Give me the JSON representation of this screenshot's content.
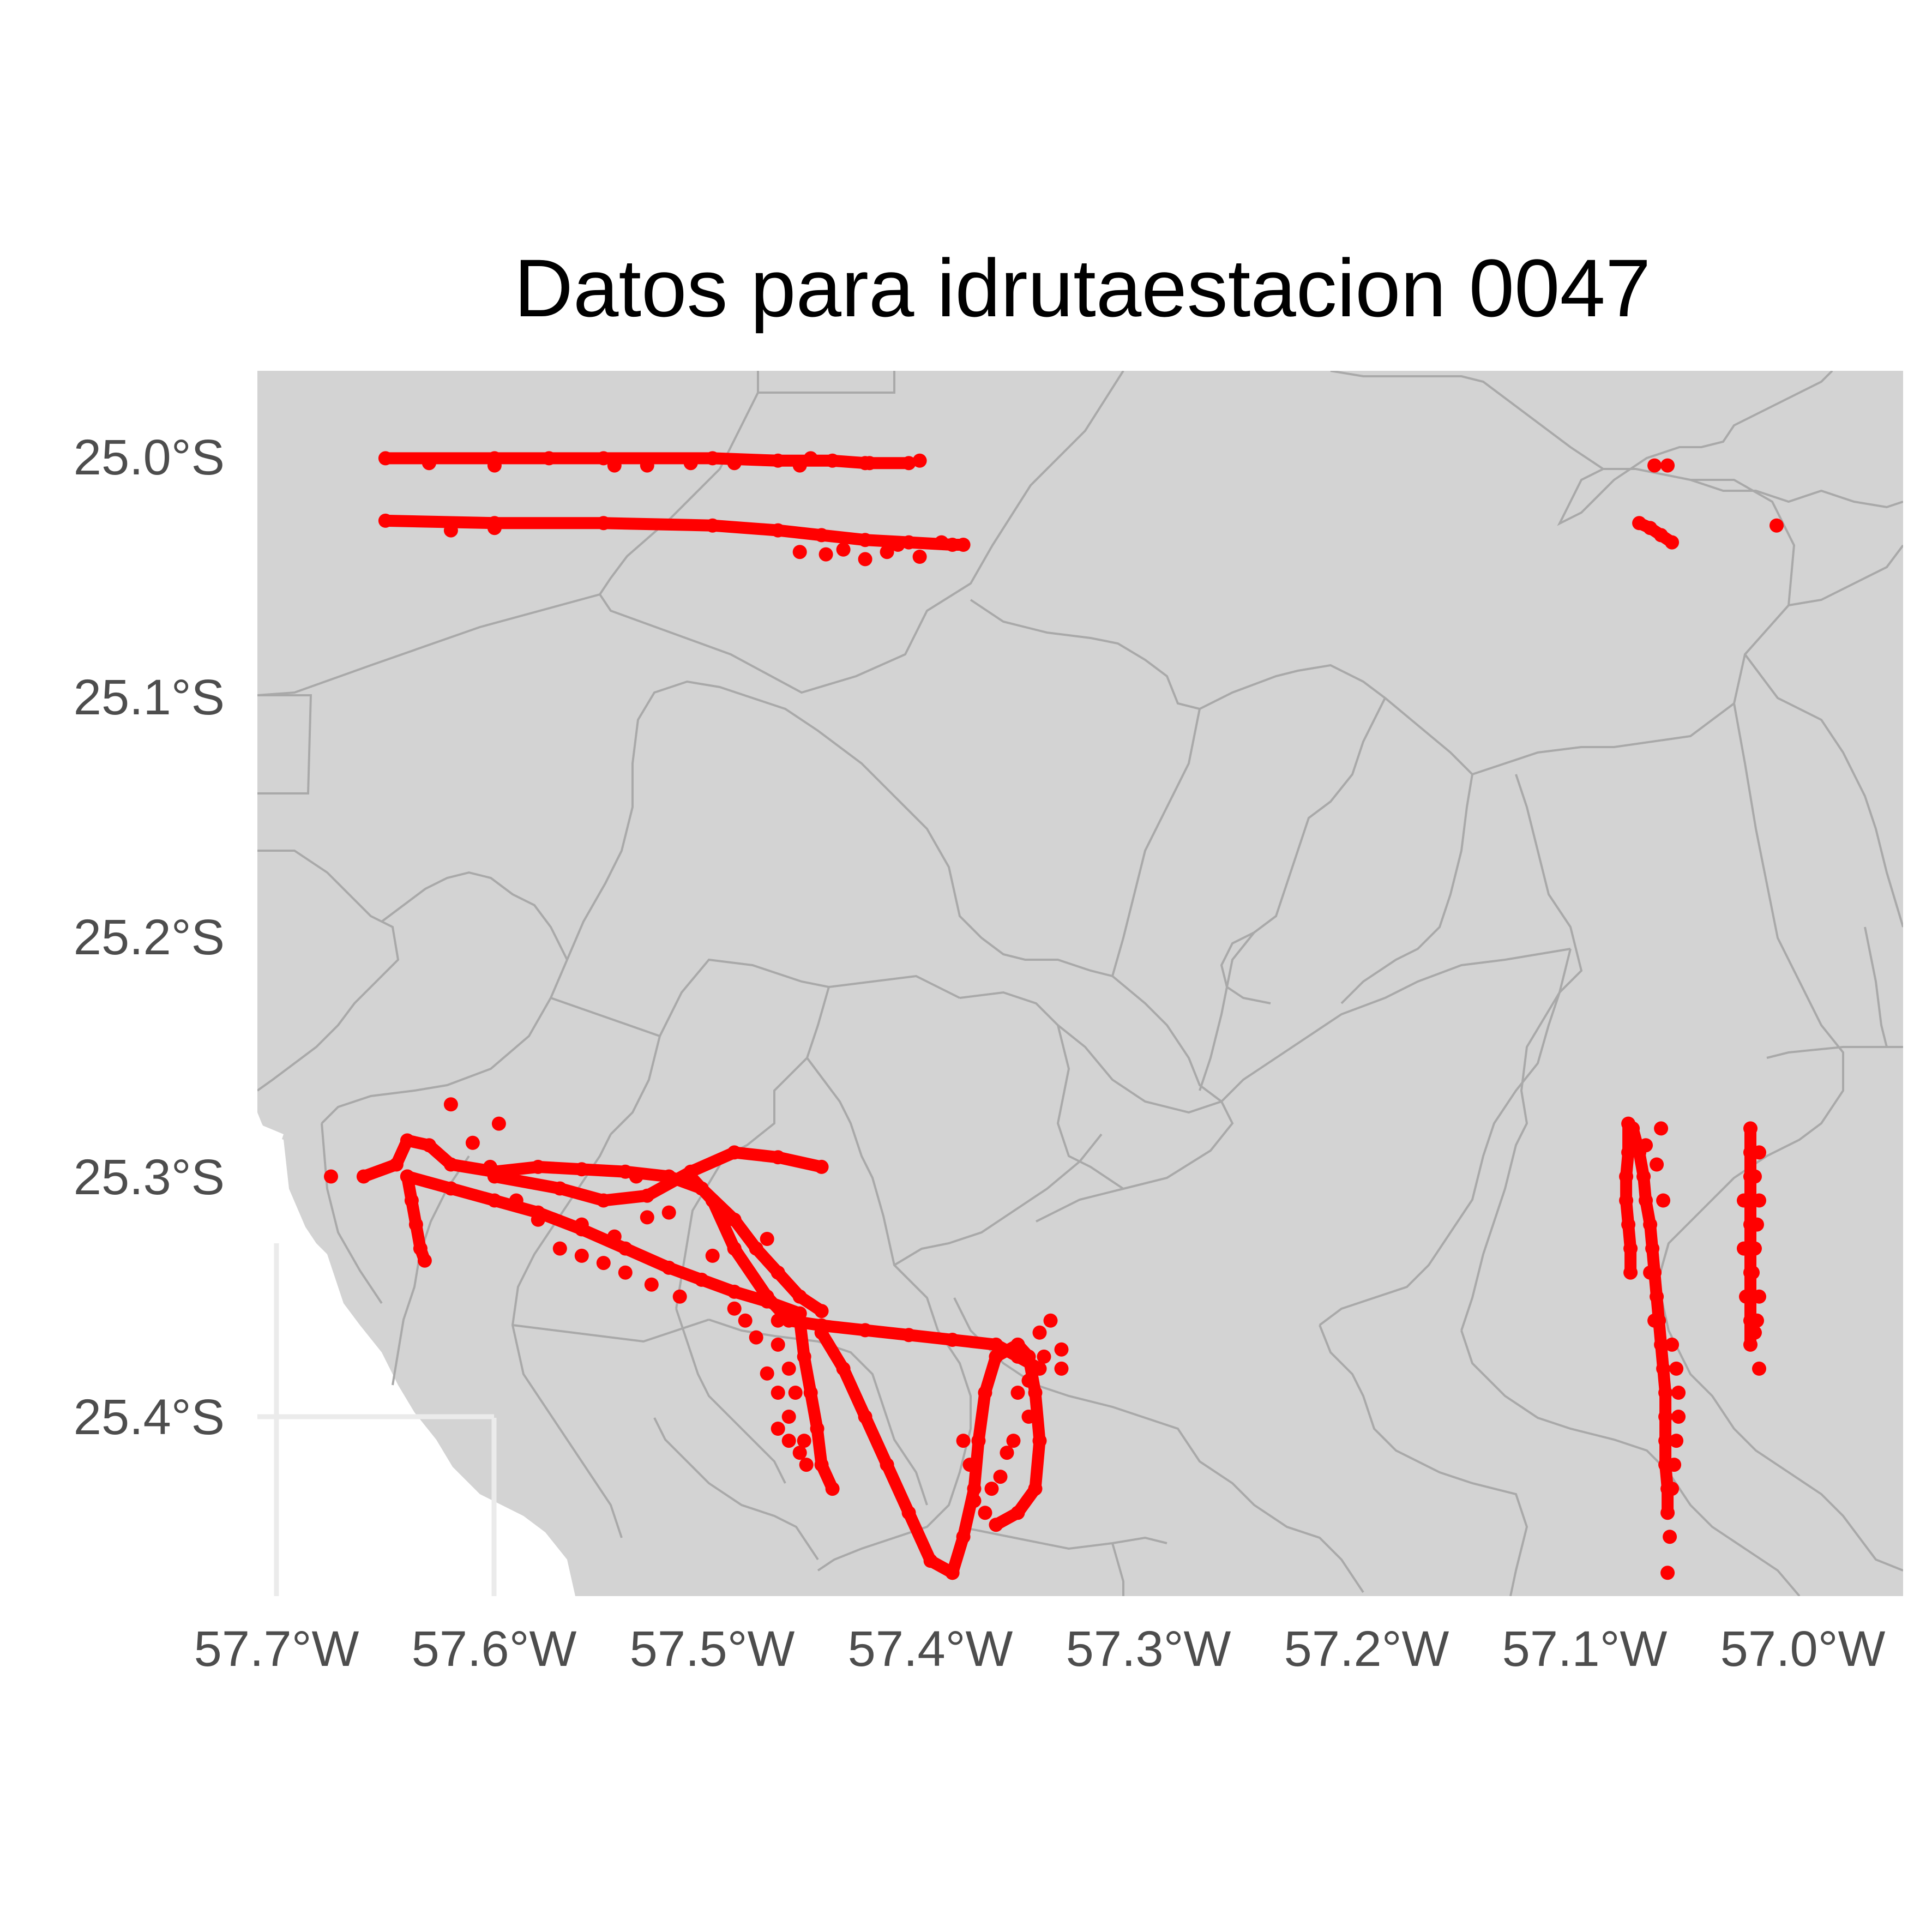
{
  "title": "Datos para idrutaestacion 0047",
  "colors": {
    "background": "#ffffff",
    "land": "#d3d3d3",
    "border": "#a9a9a9",
    "water": "#ffffff",
    "grid": "#ebebeb",
    "points": "#ff0000",
    "tick_text": "#4d4d4d"
  },
  "chart_data": {
    "type": "scatter",
    "title": "Datos para idrutaestacion 0047",
    "xlabel": "",
    "ylabel": "",
    "x_unit": "degrees longitude (negative = W)",
    "y_unit": "degrees latitude (negative = S)",
    "xlim": [
      -57.708,
      -56.955
    ],
    "ylim": [
      -25.482,
      -24.965
    ],
    "x_ticks": [
      -57.7,
      -57.6,
      -57.5,
      -57.4,
      -57.3,
      -57.2,
      -57.1,
      -57.0
    ],
    "x_tick_labels": [
      "57.7°W",
      "57.6°W",
      "57.5°W",
      "57.4°W",
      "57.3°W",
      "57.2°W",
      "57.1°W",
      "57.0°W"
    ],
    "y_ticks": [
      -25.0,
      -25.1,
      -25.2,
      -25.3,
      -25.4
    ],
    "y_tick_labels": [
      "25.0°S",
      "25.1°S",
      "25.2°S",
      "25.3°S",
      "25.4°S"
    ],
    "grid": true,
    "legend": "none",
    "tracks": [
      {
        "points": [
          [
            -57.65,
            -25.001
          ],
          [
            -57.6,
            -25.001
          ],
          [
            -57.55,
            -25.001
          ],
          [
            -57.5,
            -25.001
          ],
          [
            -57.47,
            -25.002
          ],
          [
            -57.445,
            -25.002
          ],
          [
            -57.43,
            -25.003
          ],
          [
            -57.41,
            -25.003
          ]
        ]
      },
      {
        "points": [
          [
            -57.65,
            -25.027
          ],
          [
            -57.6,
            -25.028
          ],
          [
            -57.55,
            -25.028
          ],
          [
            -57.5,
            -25.029
          ],
          [
            -57.47,
            -25.031
          ],
          [
            -57.45,
            -25.033
          ],
          [
            -57.43,
            -25.035
          ],
          [
            -57.41,
            -25.036
          ],
          [
            -57.39,
            -25.037
          ],
          [
            -57.385,
            -25.037
          ]
        ]
      },
      {
        "points": [
          [
            -57.66,
            -25.3
          ],
          [
            -57.645,
            -25.295
          ],
          [
            -57.64,
            -25.285
          ],
          [
            -57.63,
            -25.287
          ],
          [
            -57.62,
            -25.295
          ],
          [
            -57.6,
            -25.298
          ],
          [
            -57.58,
            -25.296
          ],
          [
            -57.56,
            -25.297
          ],
          [
            -57.54,
            -25.298
          ],
          [
            -57.52,
            -25.3
          ],
          [
            -57.505,
            -25.305
          ],
          [
            -57.49,
            -25.318
          ],
          [
            -57.48,
            -25.33
          ],
          [
            -57.47,
            -25.34
          ],
          [
            -57.46,
            -25.35
          ],
          [
            -57.45,
            -25.356
          ]
        ]
      },
      {
        "points": [
          [
            -57.64,
            -25.3
          ],
          [
            -57.62,
            -25.305
          ],
          [
            -57.6,
            -25.31
          ],
          [
            -57.58,
            -25.315
          ],
          [
            -57.56,
            -25.322
          ],
          [
            -57.54,
            -25.33
          ],
          [
            -57.52,
            -25.338
          ],
          [
            -57.505,
            -25.343
          ],
          [
            -57.49,
            -25.348
          ],
          [
            -57.475,
            -25.352
          ],
          [
            -57.46,
            -25.357
          ]
        ]
      },
      {
        "points": [
          [
            -57.6,
            -25.3
          ],
          [
            -57.57,
            -25.305
          ],
          [
            -57.55,
            -25.31
          ],
          [
            -57.53,
            -25.308
          ],
          [
            -57.51,
            -25.298
          ],
          [
            -57.49,
            -25.29
          ],
          [
            -57.47,
            -25.292
          ],
          [
            -57.45,
            -25.296
          ]
        ]
      },
      {
        "points": [
          [
            -57.51,
            -25.3
          ],
          [
            -57.5,
            -25.31
          ],
          [
            -57.49,
            -25.33
          ],
          [
            -57.475,
            -25.35
          ],
          [
            -57.465,
            -25.36
          ],
          [
            -57.45,
            -25.362
          ],
          [
            -57.43,
            -25.364
          ],
          [
            -57.41,
            -25.366
          ],
          [
            -57.39,
            -25.368
          ],
          [
            -57.37,
            -25.37
          ],
          [
            -57.36,
            -25.375
          ],
          [
            -57.35,
            -25.38
          ]
        ]
      },
      {
        "points": [
          [
            -57.45,
            -25.365
          ],
          [
            -57.44,
            -25.38
          ],
          [
            -57.43,
            -25.4
          ],
          [
            -57.42,
            -25.42
          ],
          [
            -57.41,
            -25.44
          ],
          [
            -57.4,
            -25.46
          ],
          [
            -57.39,
            -25.465
          ]
        ]
      },
      {
        "points": [
          [
            -57.39,
            -25.465
          ],
          [
            -57.385,
            -25.45
          ],
          [
            -57.38,
            -25.43
          ],
          [
            -57.378,
            -25.41
          ],
          [
            -57.375,
            -25.39
          ],
          [
            -57.37,
            -25.375
          ],
          [
            -57.36,
            -25.37
          ],
          [
            -57.355,
            -25.375
          ],
          [
            -57.352,
            -25.39
          ],
          [
            -57.35,
            -25.41
          ],
          [
            -57.352,
            -25.43
          ],
          [
            -57.36,
            -25.44
          ],
          [
            -57.37,
            -25.445
          ]
        ]
      },
      {
        "points": [
          [
            -57.64,
            -25.3
          ],
          [
            -57.638,
            -25.31
          ],
          [
            -57.636,
            -25.32
          ],
          [
            -57.634,
            -25.33
          ],
          [
            -57.632,
            -25.335
          ]
        ]
      },
      {
        "points": [
          [
            -57.46,
            -25.36
          ],
          [
            -57.458,
            -25.375
          ],
          [
            -57.455,
            -25.39
          ],
          [
            -57.452,
            -25.405
          ],
          [
            -57.45,
            -25.42
          ],
          [
            -57.445,
            -25.43
          ]
        ]
      },
      {
        "points": [
          [
            -57.08,
            -25.278
          ],
          [
            -57.08,
            -25.29
          ],
          [
            -57.081,
            -25.3
          ],
          [
            -57.081,
            -25.31
          ],
          [
            -57.08,
            -25.32
          ],
          [
            -57.079,
            -25.33
          ],
          [
            -57.079,
            -25.34
          ]
        ]
      },
      {
        "points": [
          [
            -57.078,
            -25.28
          ],
          [
            -57.075,
            -25.29
          ],
          [
            -57.073,
            -25.3
          ],
          [
            -57.072,
            -25.31
          ],
          [
            -57.07,
            -25.32
          ],
          [
            -57.069,
            -25.33
          ],
          [
            -57.068,
            -25.34
          ],
          [
            -57.067,
            -25.35
          ],
          [
            -57.066,
            -25.36
          ],
          [
            -57.065,
            -25.37
          ],
          [
            -57.064,
            -25.38
          ],
          [
            -57.063,
            -25.39
          ],
          [
            -57.063,
            -25.4
          ],
          [
            -57.063,
            -25.41
          ],
          [
            -57.063,
            -25.42
          ],
          [
            -57.062,
            -25.43
          ],
          [
            -57.062,
            -25.44
          ]
        ]
      },
      {
        "points": [
          [
            -57.024,
            -25.28
          ],
          [
            -57.024,
            -25.29
          ],
          [
            -57.024,
            -25.3
          ],
          [
            -57.024,
            -25.31
          ],
          [
            -57.024,
            -25.32
          ],
          [
            -57.024,
            -25.33
          ],
          [
            -57.024,
            -25.34
          ],
          [
            -57.024,
            -25.35
          ],
          [
            -57.024,
            -25.36
          ],
          [
            -57.024,
            -25.37
          ]
        ]
      },
      {
        "points": [
          [
            -57.075,
            -25.028
          ],
          [
            -57.07,
            -25.03
          ],
          [
            -57.065,
            -25.033
          ],
          [
            -57.06,
            -25.036
          ]
        ]
      }
    ],
    "points": [
      [
        -57.545,
        -25.004
      ],
      [
        -57.53,
        -25.004
      ],
      [
        -57.51,
        -25.003
      ],
      [
        -57.49,
        -25.003
      ],
      [
        -57.46,
        -25.004
      ],
      [
        -57.428,
        -25.003
      ],
      [
        -57.405,
        -25.002
      ],
      [
        -57.455,
        -25.001
      ],
      [
        -57.575,
        -25.001
      ],
      [
        -57.6,
        -25.004
      ],
      [
        -57.63,
        -25.003
      ],
      [
        -57.46,
        -25.04
      ],
      [
        -57.448,
        -25.041
      ],
      [
        -57.44,
        -25.039
      ],
      [
        -57.42,
        -25.04
      ],
      [
        -57.405,
        -25.042
      ],
      [
        -57.395,
        -25.036
      ],
      [
        -57.43,
        -25.043
      ],
      [
        -57.415,
        -25.037
      ],
      [
        -57.62,
        -25.031
      ],
      [
        -57.6,
        -25.03
      ],
      [
        -57.068,
        -25.004
      ],
      [
        -57.062,
        -25.004
      ],
      [
        -57.012,
        -25.029
      ],
      [
        -57.675,
        -25.3
      ],
      [
        -57.62,
        -25.27
      ],
      [
        -57.61,
        -25.286
      ],
      [
        -57.598,
        -25.278
      ],
      [
        -57.602,
        -25.296
      ],
      [
        -57.59,
        -25.31
      ],
      [
        -57.58,
        -25.318
      ],
      [
        -57.57,
        -25.33
      ],
      [
        -57.56,
        -25.333
      ],
      [
        -57.55,
        -25.336
      ],
      [
        -57.54,
        -25.34
      ],
      [
        -57.528,
        -25.345
      ],
      [
        -57.515,
        -25.35
      ],
      [
        -57.5,
        -25.333
      ],
      [
        -57.49,
        -25.33
      ],
      [
        -57.49,
        -25.355
      ],
      [
        -57.47,
        -25.37
      ],
      [
        -57.465,
        -25.38
      ],
      [
        -57.475,
        -25.382
      ],
      [
        -57.47,
        -25.39
      ],
      [
        -57.465,
        -25.4
      ],
      [
        -57.47,
        -25.405
      ],
      [
        -57.465,
        -25.41
      ],
      [
        -57.46,
        -25.415
      ],
      [
        -57.457,
        -25.42
      ],
      [
        -57.458,
        -25.41
      ],
      [
        -57.462,
        -25.39
      ],
      [
        -57.48,
        -25.367
      ],
      [
        -57.485,
        -25.36
      ],
      [
        -57.47,
        -25.36
      ],
      [
        -57.53,
        -25.317
      ],
      [
        -57.52,
        -25.315
      ],
      [
        -57.545,
        -25.325
      ],
      [
        -57.56,
        -25.32
      ],
      [
        -57.535,
        -25.3
      ],
      [
        -57.475,
        -25.326
      ],
      [
        -57.36,
        -25.37
      ],
      [
        -57.355,
        -25.385
      ],
      [
        -57.348,
        -25.375
      ],
      [
        -57.34,
        -25.38
      ],
      [
        -57.345,
        -25.36
      ],
      [
        -57.35,
        -25.365
      ],
      [
        -57.34,
        -25.372
      ],
      [
        -57.36,
        -25.39
      ],
      [
        -57.355,
        -25.4
      ],
      [
        -57.362,
        -25.41
      ],
      [
        -57.365,
        -25.415
      ],
      [
        -57.368,
        -25.425
      ],
      [
        -57.372,
        -25.43
      ],
      [
        -57.375,
        -25.44
      ],
      [
        -57.38,
        -25.435
      ],
      [
        -57.382,
        -25.42
      ],
      [
        -57.385,
        -25.41
      ],
      [
        -57.072,
        -25.287
      ],
      [
        -57.065,
        -25.28
      ],
      [
        -57.067,
        -25.295
      ],
      [
        -57.064,
        -25.31
      ],
      [
        -57.07,
        -25.34
      ],
      [
        -57.068,
        -25.36
      ],
      [
        -57.06,
        -25.37
      ],
      [
        -57.058,
        -25.38
      ],
      [
        -57.057,
        -25.39
      ],
      [
        -57.057,
        -25.4
      ],
      [
        -57.058,
        -25.41
      ],
      [
        -57.059,
        -25.42
      ],
      [
        -57.06,
        -25.43
      ],
      [
        -57.061,
        -25.45
      ],
      [
        -57.062,
        -25.465
      ],
      [
        -57.02,
        -25.29
      ],
      [
        -57.022,
        -25.3
      ],
      [
        -57.02,
        -25.31
      ],
      [
        -57.021,
        -25.32
      ],
      [
        -57.022,
        -25.33
      ],
      [
        -57.023,
        -25.34
      ],
      [
        -57.02,
        -25.35
      ],
      [
        -57.021,
        -25.36
      ],
      [
        -57.022,
        -25.365
      ],
      [
        -57.02,
        -25.38
      ],
      [
        -57.027,
        -25.31
      ],
      [
        -57.027,
        -25.33
      ],
      [
        -57.026,
        -25.35
      ]
    ]
  }
}
